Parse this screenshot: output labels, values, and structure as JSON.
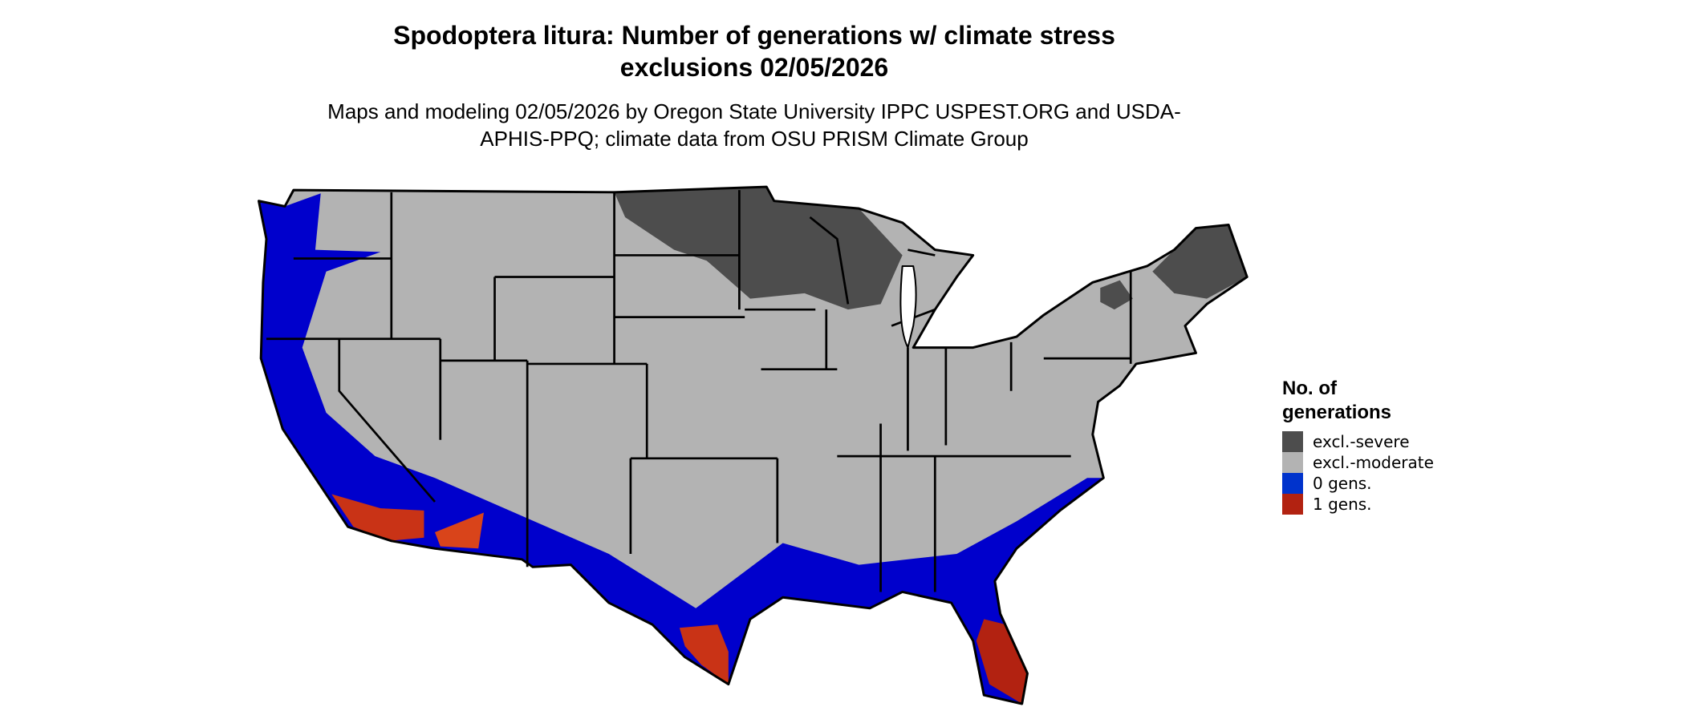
{
  "title": "Spodoptera litura: Number of generations w/ climate stress exclusions 02/05/2026",
  "subtitle": "Maps and modeling 02/05/2026 by Oregon State University IPPC USPEST.ORG and USDA-APHIS-PPQ; climate data from OSU PRISM Climate Group",
  "legend": {
    "title": "No. of generations",
    "items": [
      {
        "label": "excl.-severe",
        "color": "#4d4d4d"
      },
      {
        "label": "excl.-moderate",
        "color": "#b3b3b3"
      },
      {
        "label": "0 gens.",
        "color": "#0033cc"
      },
      {
        "label": "1 gens.",
        "color": "#b22211"
      }
    ]
  }
}
